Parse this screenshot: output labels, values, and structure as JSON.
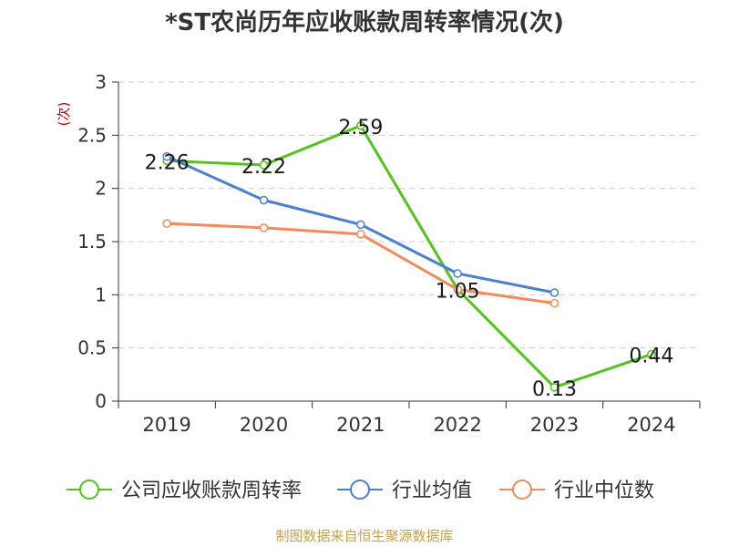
{
  "chart_data": {
    "type": "line",
    "title": "*ST农尚历年应收账款周转率情况(次)",
    "ylabel": "(次)",
    "xlabel": "",
    "categories": [
      "2019",
      "2020",
      "2021",
      "2022",
      "2023",
      "2024"
    ],
    "ylim": [
      0,
      3
    ],
    "yticks": [
      0,
      0.5,
      1,
      1.5,
      2,
      2.5,
      3
    ],
    "ytick_labels": [
      "0",
      "0.5",
      "1",
      "1.5",
      "2",
      "2.5",
      "3"
    ],
    "grid": true,
    "legend_position": "bottom",
    "series": [
      {
        "name": "公司应收账款周转率",
        "color": "#52c41a",
        "values": [
          2.26,
          2.22,
          2.59,
          1.05,
          0.13,
          0.44
        ],
        "data_labels": [
          "2.26",
          "2.22",
          "2.59",
          "1.05",
          "0.13",
          "0.44"
        ]
      },
      {
        "name": "行业均值",
        "color": "#4a7fd4",
        "values": [
          2.3,
          1.89,
          1.66,
          1.2,
          1.02,
          null
        ]
      },
      {
        "name": "行业中位数",
        "color": "#f5895a",
        "values": [
          1.67,
          1.63,
          1.57,
          1.05,
          0.92,
          null
        ]
      }
    ]
  },
  "source": "制图数据来自恒生聚源数据库"
}
